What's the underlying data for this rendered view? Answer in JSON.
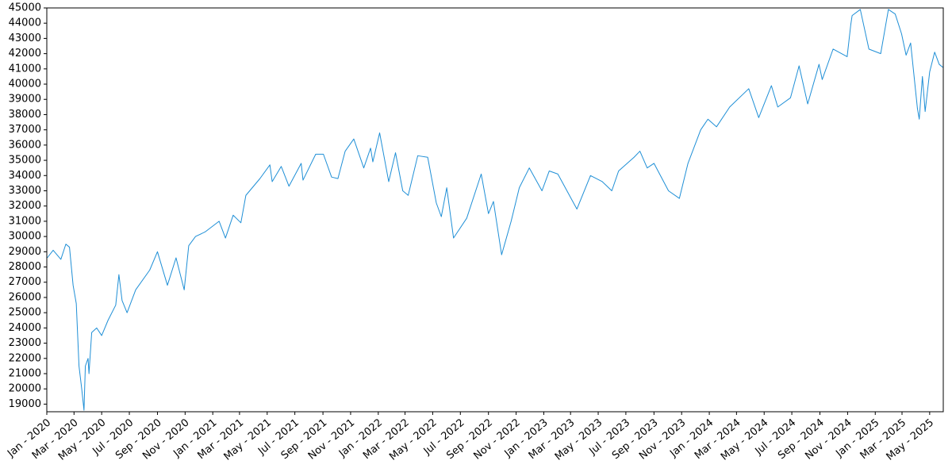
{
  "chart_data": {
    "type": "line",
    "title": "",
    "xlabel": "",
    "ylabel": "",
    "xlim": [
      "2020-01-01",
      "2025-05-31"
    ],
    "ylim": [
      18500,
      45000
    ],
    "grid": false,
    "legend": "none",
    "y_ticks": [
      19000,
      20000,
      21000,
      22000,
      23000,
      24000,
      25000,
      26000,
      27000,
      28000,
      29000,
      30000,
      31000,
      32000,
      33000,
      34000,
      35000,
      36000,
      37000,
      38000,
      39000,
      40000,
      41000,
      42000,
      43000,
      44000,
      45000
    ],
    "x_ticks": [
      {
        "date": "2020-01-01",
        "label": "Jan - 2020"
      },
      {
        "date": "2020-03-01",
        "label": "Mar - 2020"
      },
      {
        "date": "2020-05-01",
        "label": "May - 2020"
      },
      {
        "date": "2020-07-01",
        "label": "Jul - 2020"
      },
      {
        "date": "2020-09-01",
        "label": "Sep - 2020"
      },
      {
        "date": "2020-11-01",
        "label": "Nov - 2020"
      },
      {
        "date": "2021-01-01",
        "label": "Jan - 2021"
      },
      {
        "date": "2021-03-01",
        "label": "Mar - 2021"
      },
      {
        "date": "2021-05-01",
        "label": "May - 2021"
      },
      {
        "date": "2021-07-01",
        "label": "Jul - 2021"
      },
      {
        "date": "2021-09-01",
        "label": "Sep - 2021"
      },
      {
        "date": "2021-11-01",
        "label": "Nov - 2021"
      },
      {
        "date": "2022-01-01",
        "label": "Jan - 2022"
      },
      {
        "date": "2022-03-01",
        "label": "Mar - 2022"
      },
      {
        "date": "2022-05-01",
        "label": "May - 2022"
      },
      {
        "date": "2022-07-01",
        "label": "Jul - 2022"
      },
      {
        "date": "2022-09-01",
        "label": "Sep - 2022"
      },
      {
        "date": "2022-11-01",
        "label": "Nov - 2022"
      },
      {
        "date": "2023-01-01",
        "label": "Jan - 2023"
      },
      {
        "date": "2023-03-01",
        "label": "Mar - 2023"
      },
      {
        "date": "2023-05-01",
        "label": "May - 2023"
      },
      {
        "date": "2023-07-01",
        "label": "Jul - 2023"
      },
      {
        "date": "2023-09-01",
        "label": "Sep - 2023"
      },
      {
        "date": "2023-11-01",
        "label": "Nov - 2023"
      },
      {
        "date": "2024-01-01",
        "label": "Jan - 2024"
      },
      {
        "date": "2024-03-01",
        "label": "Mar - 2024"
      },
      {
        "date": "2024-05-01",
        "label": "May - 2024"
      },
      {
        "date": "2024-07-01",
        "label": "Jul - 2024"
      },
      {
        "date": "2024-09-01",
        "label": "Sep - 2024"
      },
      {
        "date": "2024-11-01",
        "label": "Nov - 2024"
      },
      {
        "date": "2025-01-01",
        "label": "Jan - 2025"
      },
      {
        "date": "2025-03-01",
        "label": "Mar - 2025"
      },
      {
        "date": "2025-05-01",
        "label": "May - 2025"
      }
    ],
    "series": [
      {
        "color": "#1f8fd6",
        "points": [
          [
            "2020-01-02",
            28600
          ],
          [
            "2020-01-15",
            29100
          ],
          [
            "2020-02-01",
            28500
          ],
          [
            "2020-02-12",
            29500
          ],
          [
            "2020-02-20",
            29300
          ],
          [
            "2020-02-28",
            26800
          ],
          [
            "2020-03-06",
            25600
          ],
          [
            "2020-03-12",
            21500
          ],
          [
            "2020-03-18",
            20000
          ],
          [
            "2020-03-23",
            18600
          ],
          [
            "2020-03-26",
            21500
          ],
          [
            "2020-04-01",
            22000
          ],
          [
            "2020-04-03",
            21000
          ],
          [
            "2020-04-09",
            23700
          ],
          [
            "2020-04-20",
            24000
          ],
          [
            "2020-05-01",
            23500
          ],
          [
            "2020-05-15",
            24500
          ],
          [
            "2020-06-01",
            25500
          ],
          [
            "2020-06-08",
            27500
          ],
          [
            "2020-06-15",
            25800
          ],
          [
            "2020-06-26",
            25000
          ],
          [
            "2020-07-15",
            26500
          ],
          [
            "2020-08-15",
            27800
          ],
          [
            "2020-09-01",
            29000
          ],
          [
            "2020-09-23",
            26800
          ],
          [
            "2020-10-12",
            28600
          ],
          [
            "2020-10-30",
            26500
          ],
          [
            "2020-11-09",
            29400
          ],
          [
            "2020-11-24",
            30000
          ],
          [
            "2020-12-15",
            30300
          ],
          [
            "2021-01-15",
            31000
          ],
          [
            "2021-01-29",
            29900
          ],
          [
            "2021-02-15",
            31400
          ],
          [
            "2021-03-04",
            30900
          ],
          [
            "2021-03-15",
            32700
          ],
          [
            "2021-04-15",
            33800
          ],
          [
            "2021-05-07",
            34700
          ],
          [
            "2021-05-12",
            33600
          ],
          [
            "2021-06-01",
            34600
          ],
          [
            "2021-06-18",
            33300
          ],
          [
            "2021-07-15",
            34800
          ],
          [
            "2021-07-19",
            33700
          ],
          [
            "2021-08-16",
            35400
          ],
          [
            "2021-09-02",
            35400
          ],
          [
            "2021-09-20",
            33900
          ],
          [
            "2021-10-04",
            33800
          ],
          [
            "2021-10-20",
            35600
          ],
          [
            "2021-11-08",
            36400
          ],
          [
            "2021-11-30",
            34500
          ],
          [
            "2021-12-15",
            35800
          ],
          [
            "2021-12-20",
            34900
          ],
          [
            "2022-01-04",
            36800
          ],
          [
            "2022-01-24",
            33600
          ],
          [
            "2022-02-08",
            35500
          ],
          [
            "2022-02-24",
            33000
          ],
          [
            "2022-03-08",
            32700
          ],
          [
            "2022-03-29",
            35300
          ],
          [
            "2022-04-20",
            35200
          ],
          [
            "2022-05-09",
            32200
          ],
          [
            "2022-05-20",
            31300
          ],
          [
            "2022-06-01",
            33200
          ],
          [
            "2022-06-16",
            29900
          ],
          [
            "2022-07-15",
            31200
          ],
          [
            "2022-08-16",
            34100
          ],
          [
            "2022-09-01",
            31500
          ],
          [
            "2022-09-12",
            32300
          ],
          [
            "2022-09-30",
            28800
          ],
          [
            "2022-10-21",
            31000
          ],
          [
            "2022-11-08",
            33200
          ],
          [
            "2022-11-30",
            34500
          ],
          [
            "2022-12-28",
            33000
          ],
          [
            "2023-01-13",
            34300
          ],
          [
            "2023-02-01",
            34100
          ],
          [
            "2023-03-15",
            31800
          ],
          [
            "2023-04-14",
            34000
          ],
          [
            "2023-05-10",
            33600
          ],
          [
            "2023-05-31",
            33000
          ],
          [
            "2023-06-15",
            34300
          ],
          [
            "2023-07-19",
            35200
          ],
          [
            "2023-08-01",
            35600
          ],
          [
            "2023-08-17",
            34500
          ],
          [
            "2023-09-01",
            34800
          ],
          [
            "2023-10-03",
            33000
          ],
          [
            "2023-10-27",
            32500
          ],
          [
            "2023-11-15",
            34800
          ],
          [
            "2023-12-13",
            37000
          ],
          [
            "2023-12-29",
            37700
          ],
          [
            "2024-01-17",
            37200
          ],
          [
            "2024-02-15",
            38500
          ],
          [
            "2024-03-28",
            39700
          ],
          [
            "2024-04-19",
            37800
          ],
          [
            "2024-05-17",
            39900
          ],
          [
            "2024-05-31",
            38500
          ],
          [
            "2024-06-28",
            39100
          ],
          [
            "2024-07-17",
            41200
          ],
          [
            "2024-08-05",
            38700
          ],
          [
            "2024-08-30",
            41300
          ],
          [
            "2024-09-06",
            40300
          ],
          [
            "2024-09-30",
            42300
          ],
          [
            "2024-10-31",
            41800
          ],
          [
            "2024-11-08",
            43900
          ],
          [
            "2024-11-11",
            44500
          ],
          [
            "2024-11-29",
            44900
          ],
          [
            "2024-12-18",
            42300
          ],
          [
            "2025-01-13",
            42000
          ],
          [
            "2025-01-30",
            44900
          ],
          [
            "2025-02-14",
            44600
          ],
          [
            "2025-02-28",
            43300
          ],
          [
            "2025-03-10",
            41900
          ],
          [
            "2025-03-20",
            42700
          ],
          [
            "2025-04-04",
            38400
          ],
          [
            "2025-04-08",
            37700
          ],
          [
            "2025-04-15",
            40500
          ],
          [
            "2025-04-21",
            38200
          ],
          [
            "2025-05-01",
            40800
          ],
          [
            "2025-05-12",
            42100
          ],
          [
            "2025-05-22",
            41300
          ],
          [
            "2025-05-30",
            41100
          ]
        ]
      }
    ]
  }
}
